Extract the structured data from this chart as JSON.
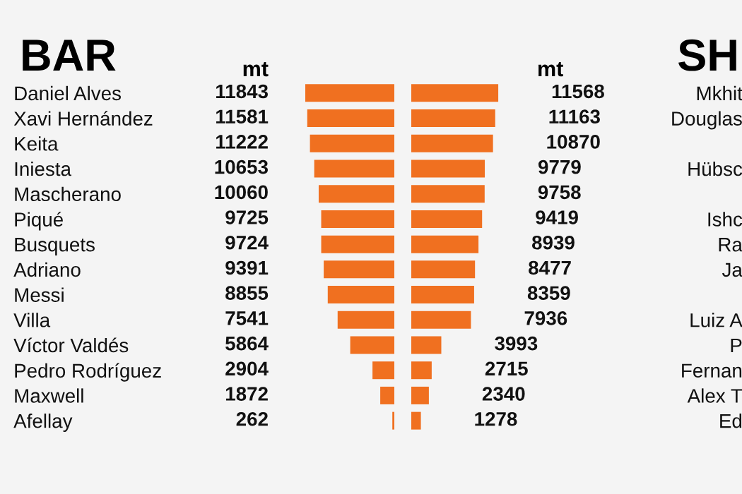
{
  "chart_data": [
    {
      "type": "bar",
      "orientation": "horizontal",
      "title": "BAR",
      "annotations": [
        "mt"
      ],
      "categories": [
        "Daniel Alves",
        "Xavi Hernández",
        "Keita",
        "Iniesta",
        "Mascherano",
        "Piqué",
        "Busquets",
        "Adriano",
        "Messi",
        "Villa",
        "Víctor Valdés",
        "Pedro Rodríguez",
        "Maxwell",
        "Afellay"
      ],
      "values": [
        11843,
        11581,
        11222,
        10653,
        10060,
        9725,
        9724,
        9391,
        8855,
        7541,
        5864,
        2904,
        1872,
        262
      ],
      "color": "#f07020",
      "xlim": [
        11843,
        0
      ],
      "data_labels": true,
      "tick_labels": "y"
    },
    {
      "type": "bar",
      "orientation": "horizontal",
      "title": "SH",
      "annotations": [
        "mt"
      ],
      "categories": [
        "Mkhit",
        "Douglas",
        null,
        "Hübsc",
        null,
        "Ishc",
        "Ra",
        "Ja",
        null,
        "Luiz A",
        "P",
        "Fernan",
        "Alex T",
        "Ed"
      ],
      "values": [
        11568,
        11163,
        10870,
        9779,
        9758,
        9419,
        8939,
        8477,
        8359,
        7936,
        3993,
        2715,
        2340,
        1278
      ],
      "color": "#f07020",
      "xlim": [
        0,
        11843
      ],
      "data_labels": true,
      "tick_labels": "y"
    }
  ]
}
